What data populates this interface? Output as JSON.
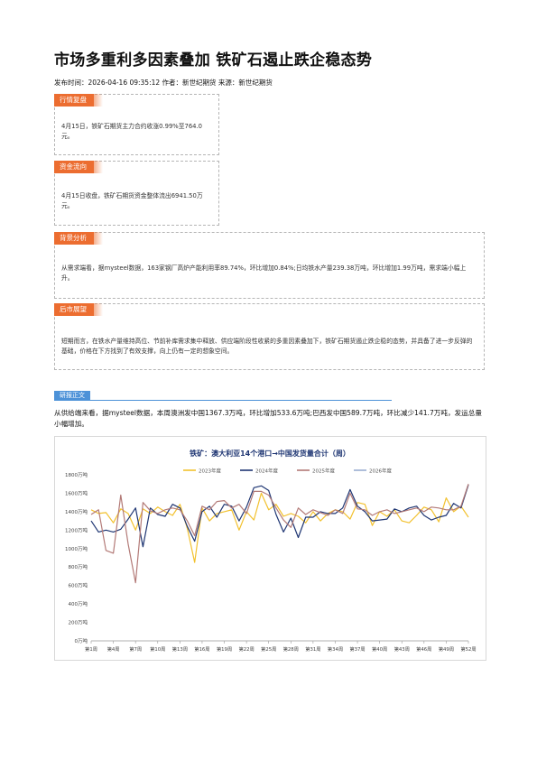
{
  "article": {
    "title": "市场多重利多因素叠加 铁矿石遏止跌企稳态势",
    "meta": "发布时间：2026-04-16 09:35:12 作者：新世纪期货 来源：新世纪期货"
  },
  "sections": {
    "market_review": {
      "label": "行情复盘",
      "text": "4月15日，铁矿石期货主力合约收涨0.99%至764.0元。"
    },
    "fund_flow": {
      "label": "资金流向",
      "text": "4月15日收盘，铁矿石期货资金整体流出6941.50万元。"
    },
    "background": {
      "label": "背景分析",
      "text": "从需求端看，据mysteel数据，163家钢厂高炉产能利用率89.74%，环比增加0.84%;日均铁水产量239.38万吨，环比增加1.99万吨，需求端小幅上升。"
    },
    "outlook": {
      "label": "后市展望",
      "text": "短期而言，在铁水产量维持高位、节前补库需求集中释放、供应端阶段性收紧的多重因素叠加下，铁矿石期货遏止跌企稳的态势，并具备了进一步反弹的基础，价格在下方找到了有效支撑，向上仍有一定的想象空间。"
    }
  },
  "research": {
    "label": "研报正文",
    "text": "从供给端来看，据mysteel数据，本周澳洲发中国1367.3万吨，环比增加533.6万吨;巴西发中国589.7万吨，环比减少141.7万吨，发运总量小幅增加。"
  },
  "chart_data": {
    "type": "line",
    "title": "铁矿：澳大利亚14个港口→中国发货量合计（周）",
    "x_labels": [
      "第1周",
      "第4周",
      "第7周",
      "第10周",
      "第13周",
      "第16周",
      "第19周",
      "第22周",
      "第25周",
      "第28周",
      "第31周",
      "第34周",
      "第37周",
      "第40周",
      "第43周",
      "第46周",
      "第49周",
      "第52周"
    ],
    "y_ticks": [
      "0万吨",
      "200万吨",
      "400万吨",
      "600万吨",
      "800万吨",
      "1000万吨",
      "1200万吨",
      "1400万吨",
      "1600万吨",
      "1800万吨"
    ],
    "ylim": [
      0,
      1800
    ],
    "legend_position": "top",
    "grid": false,
    "series": [
      {
        "name": "2023年度",
        "color": "#f2c12e",
        "values": [
          1420,
          1380,
          1390,
          1280,
          1430,
          1380,
          1200,
          1430,
          1380,
          1450,
          1400,
          1360,
          1480,
          1220,
          850,
          1440,
          1300,
          1380,
          1400,
          1420,
          1200,
          1400,
          1310,
          1600,
          1420,
          1480,
          1350,
          1380,
          1350,
          1280,
          1400,
          1300,
          1380,
          1420,
          1400,
          1320,
          1500,
          1480,
          1250,
          1400,
          1350,
          1420,
          1300,
          1280,
          1360,
          1450,
          1420,
          1290,
          1550,
          1400,
          1460,
          1340
        ]
      },
      {
        "name": "2024年度",
        "color": "#1f3673",
        "values": [
          1300,
          1180,
          1200,
          1180,
          1210,
          1320,
          1440,
          1020,
          1440,
          1370,
          1350,
          1480,
          1440,
          1240,
          1080,
          1400,
          1460,
          1340,
          1480,
          1460,
          1300,
          1450,
          1660,
          1680,
          1630,
          1370,
          1180,
          1330,
          1120,
          1340,
          1340,
          1400,
          1380,
          1380,
          1440,
          1640,
          1460,
          1400,
          1300,
          1310,
          1320,
          1430,
          1400,
          1440,
          1460,
          1360,
          1310,
          1340,
          1360,
          1490,
          1440,
          1690
        ]
      },
      {
        "name": "2025年度",
        "color": "#b37a77",
        "values": [
          1370,
          1420,
          980,
          950,
          1580,
          1050,
          630,
          1500,
          1410,
          1380,
          1420,
          1440,
          1420,
          1300,
          1140,
          1460,
          1420,
          1510,
          1520,
          1440,
          1480,
          1380,
          1620,
          1620,
          1580,
          1440,
          1310,
          1230,
          1440,
          1370,
          1420,
          1390,
          1360,
          1420,
          1380,
          1600,
          1430,
          1420,
          1360,
          1400,
          1420,
          1380,
          1400,
          1420,
          1440,
          1400,
          1450,
          1440,
          1420,
          1420,
          1460,
          1700
        ]
      },
      {
        "name": "2026年度",
        "color": "#9aaed0",
        "values": []
      }
    ]
  }
}
